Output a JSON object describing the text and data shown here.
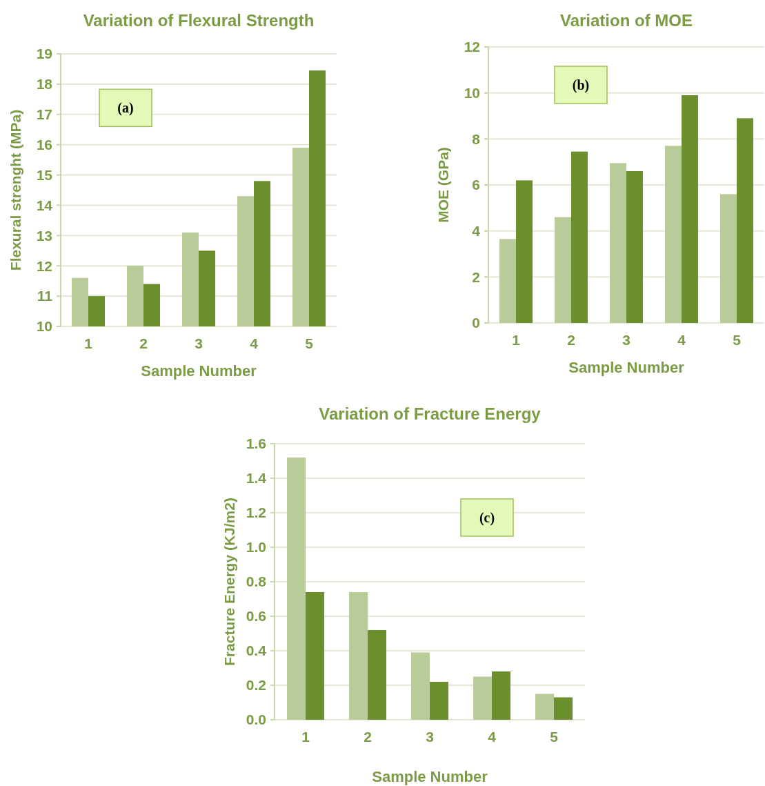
{
  "chart_data": [
    {
      "type": "bar",
      "title": "Variation of Flexural Strength",
      "xlabel": "Sample Number",
      "ylabel": "Flexural strenght (MPa)",
      "categories": [
        "1",
        "2",
        "3",
        "4",
        "5"
      ],
      "series": [
        {
          "color": "#b9cb98",
          "values": [
            11.6,
            12.0,
            13.1,
            14.3,
            15.9
          ]
        },
        {
          "color": "#6b8f2c",
          "values": [
            11.0,
            11.4,
            12.5,
            14.8,
            18.45
          ]
        }
      ],
      "ylim": [
        10,
        19
      ],
      "yticks": [
        10,
        11,
        12,
        13,
        14,
        15,
        16,
        17,
        18,
        19
      ],
      "grid": "y",
      "annotations": [
        "(a)"
      ]
    },
    {
      "type": "bar",
      "title": "Variation of MOE",
      "xlabel": "Sample Number",
      "ylabel": "MOE (GPa)",
      "categories": [
        "1",
        "2",
        "3",
        "4",
        "5"
      ],
      "series": [
        {
          "color": "#b9cb98",
          "values": [
            3.65,
            4.6,
            6.95,
            7.7,
            5.6
          ]
        },
        {
          "color": "#6b8f2c",
          "values": [
            6.2,
            7.45,
            6.6,
            9.9,
            8.9
          ]
        }
      ],
      "ylim": [
        0,
        12
      ],
      "yticks": [
        0,
        2,
        4,
        6,
        8,
        10,
        12
      ],
      "grid": "y",
      "annotations": [
        "(b)"
      ]
    },
    {
      "type": "bar",
      "title": "Variation of Fracture Energy",
      "xlabel": "Sample Number",
      "ylabel": "Fracture Energy (KJ/m2)",
      "categories": [
        "1",
        "2",
        "3",
        "4",
        "5"
      ],
      "series": [
        {
          "color": "#b9cb98",
          "values": [
            1.52,
            0.74,
            0.39,
            0.25,
            0.15
          ]
        },
        {
          "color": "#6b8f2c",
          "values": [
            0.74,
            0.52,
            0.22,
            0.28,
            0.13
          ]
        }
      ],
      "ylim": [
        0,
        1.6
      ],
      "yticks": [
        {
          "value": 0,
          "label": "0.0"
        },
        {
          "value": 0.2,
          "label": "0.2"
        },
        {
          "value": 0.4,
          "label": "0.4"
        },
        {
          "value": 0.6,
          "label": "0.6"
        },
        {
          "value": 0.8,
          "label": "0.8"
        },
        {
          "value": 1.0,
          "label": "1.0"
        },
        {
          "value": 1.2,
          "label": "1.2"
        },
        {
          "value": 1.4,
          "label": "1.4"
        },
        {
          "value": 1.6,
          "label": "1.6"
        }
      ],
      "grid": "y",
      "annotations": [
        "(c)"
      ]
    }
  ]
}
